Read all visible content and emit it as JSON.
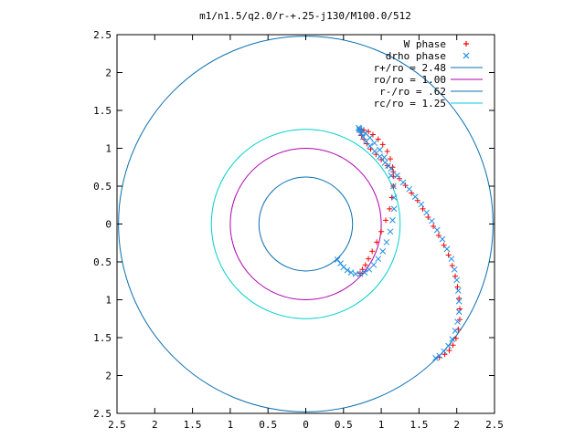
{
  "chart_data": {
    "type": "line",
    "title": "m1/n1.5/q2.0/r-+.25-j130/M100.0/512",
    "xlabel": "",
    "ylabel": "",
    "xlim": [
      -2.5,
      2.5
    ],
    "ylim": [
      -2.5,
      2.5
    ],
    "x_ticks": [
      -2.5,
      -2,
      -1.5,
      -1,
      -0.5,
      0,
      0.5,
      1,
      1.5,
      2,
      2.5
    ],
    "x_tick_labels": [
      "2.5",
      "2",
      "1.5",
      "1",
      "0.5",
      "0",
      "0.5",
      "1",
      "1.5",
      "2",
      "2.5"
    ],
    "y_ticks": [
      2.5,
      2,
      1.5,
      1,
      0.5,
      0,
      -0.5,
      -1,
      -1.5,
      -2,
      -2.5
    ],
    "y_tick_labels": [
      "2.5",
      "2",
      "1.5",
      "1",
      "0.5",
      "0",
      "0.5",
      "1",
      "1.5",
      "2",
      "2.5"
    ],
    "grid": false,
    "legend_position": "top-right",
    "circles": [
      {
        "name": "r+/ro = 2.48",
        "radius": 2.48,
        "color": "#0a6fb0"
      },
      {
        "name": "ro/ro = 1.00",
        "radius": 1.0,
        "color": "#b000b0"
      },
      {
        "name": "r-/ro = .62",
        "radius": 0.62,
        "color": "#0a6fb0"
      },
      {
        "name": "rc/ro = 1.25",
        "radius": 1.25,
        "color": "#00d0d0"
      }
    ],
    "series": [
      {
        "name": "W phase",
        "marker": "plus",
        "color": "#ff0000",
        "x": [
          0.72,
          0.75,
          0.79,
          0.83,
          0.88,
          0.94,
          1.0,
          1.06,
          1.11,
          1.14,
          1.16,
          1.16,
          1.15,
          1.12,
          1.08,
          1.02,
          0.96,
          0.89,
          0.83,
          0.77,
          0.74,
          0.73,
          0.74,
          0.77,
          0.81,
          0.86,
          0.93,
          1.0,
          1.08,
          1.16,
          1.24,
          1.32,
          1.4,
          1.48,
          1.55,
          1.62,
          1.69,
          1.76,
          1.83,
          1.89,
          1.94,
          1.98,
          2.01,
          2.03,
          2.04,
          2.04,
          2.02,
          1.99,
          1.95,
          1.9,
          1.84,
          1.77
        ],
        "y": [
          -0.65,
          -0.6,
          -0.54,
          -0.46,
          -0.36,
          -0.24,
          -0.1,
          0.05,
          0.2,
          0.35,
          0.5,
          0.63,
          0.75,
          0.86,
          0.96,
          1.05,
          1.12,
          1.18,
          1.22,
          1.24,
          1.24,
          1.21,
          1.17,
          1.12,
          1.06,
          0.99,
          0.92,
          0.85,
          0.77,
          0.69,
          0.6,
          0.51,
          0.41,
          0.31,
          0.2,
          0.09,
          -0.03,
          -0.15,
          -0.28,
          -0.41,
          -0.55,
          -0.69,
          -0.83,
          -0.98,
          -1.12,
          -1.26,
          -1.39,
          -1.51,
          -1.6,
          -1.67,
          -1.72,
          -1.76
        ]
      },
      {
        "name": "drho phase",
        "marker": "cross",
        "color": "#1e8fe6",
        "x": [
          0.42,
          0.46,
          0.5,
          0.55,
          0.6,
          0.66,
          0.72,
          0.78,
          0.84,
          0.9,
          0.96,
          1.02,
          1.07,
          1.12,
          1.15,
          1.17,
          1.17,
          1.16,
          1.13,
          1.09,
          1.04,
          0.98,
          0.91,
          0.85,
          0.79,
          0.74,
          0.71,
          0.7,
          0.71,
          0.73,
          0.76,
          0.8,
          0.85,
          0.91,
          0.98,
          1.05,
          1.13,
          1.21,
          1.29,
          1.37,
          1.45,
          1.53,
          1.6,
          1.67,
          1.74,
          1.81,
          1.87,
          1.93,
          1.97,
          2.0,
          2.02,
          2.03,
          2.03,
          2.01,
          1.98,
          1.94,
          1.89,
          1.83,
          1.77,
          1.72
        ],
        "y": [
          -0.47,
          -0.52,
          -0.57,
          -0.61,
          -0.64,
          -0.66,
          -0.66,
          -0.64,
          -0.6,
          -0.54,
          -0.46,
          -0.36,
          -0.24,
          -0.1,
          0.05,
          0.2,
          0.35,
          0.5,
          0.64,
          0.77,
          0.88,
          0.98,
          1.07,
          1.14,
          1.2,
          1.24,
          1.26,
          1.27,
          1.24,
          1.2,
          1.15,
          1.09,
          1.03,
          0.96,
          0.89,
          0.81,
          0.73,
          0.64,
          0.55,
          0.46,
          0.36,
          0.26,
          0.15,
          0.04,
          -0.08,
          -0.2,
          -0.33,
          -0.46,
          -0.6,
          -0.74,
          -0.88,
          -1.02,
          -1.16,
          -1.29,
          -1.41,
          -1.52,
          -1.61,
          -1.68,
          -1.74,
          -1.77
        ]
      }
    ]
  }
}
